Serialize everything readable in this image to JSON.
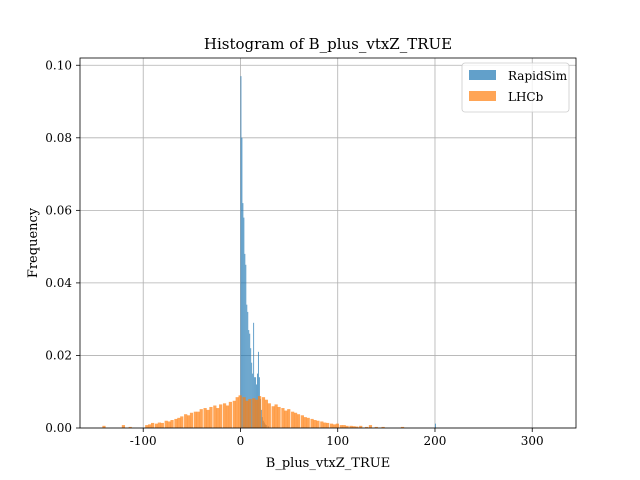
{
  "chart_data": {
    "type": "bar",
    "title": "Histogram of B_plus_vtxZ_TRUE",
    "xlabel": "B_plus_vtxZ_TRUE",
    "ylabel": "Frequency",
    "xlim": [
      -165,
      345
    ],
    "ylim": [
      0,
      0.102
    ],
    "xticks": [
      -100,
      0,
      100,
      200,
      300
    ],
    "xtick_labels": [
      "-100",
      "0",
      "100",
      "200",
      "300"
    ],
    "yticks": [
      0.0,
      0.02,
      0.04,
      0.06,
      0.08,
      0.1
    ],
    "ytick_labels": [
      "0.00",
      "0.02",
      "0.04",
      "0.06",
      "0.08",
      "0.10"
    ],
    "grid": true,
    "legend_position": "top-right",
    "series": [
      {
        "name": "RapidSim",
        "color": "#1f77b4",
        "opacity": 0.7,
        "bin_width": 1.0,
        "bins": [
          {
            "x": 0,
            "y": 0.097
          },
          {
            "x": 1,
            "y": 0.08
          },
          {
            "x": 2,
            "y": 0.062
          },
          {
            "x": 3,
            "y": 0.058
          },
          {
            "x": 4,
            "y": 0.048
          },
          {
            "x": 5,
            "y": 0.045
          },
          {
            "x": 6,
            "y": 0.034
          },
          {
            "x": 7,
            "y": 0.032
          },
          {
            "x": 8,
            "y": 0.027
          },
          {
            "x": 9,
            "y": 0.026
          },
          {
            "x": 10,
            "y": 0.022
          },
          {
            "x": 11,
            "y": 0.018
          },
          {
            "x": 12,
            "y": 0.015
          },
          {
            "x": 13,
            "y": 0.029
          },
          {
            "x": 14,
            "y": 0.014
          },
          {
            "x": 15,
            "y": 0.014
          },
          {
            "x": 16,
            "y": 0.012
          },
          {
            "x": 17,
            "y": 0.015
          },
          {
            "x": 18,
            "y": 0.021
          },
          {
            "x": 19,
            "y": 0.014
          },
          {
            "x": 20,
            "y": 0.008
          },
          {
            "x": 21,
            "y": 0.005
          },
          {
            "x": 22,
            "y": 0.003
          },
          {
            "x": 23,
            "y": 0.002
          },
          {
            "x": 24,
            "y": 0.0015
          },
          {
            "x": 25,
            "y": 0.001
          },
          {
            "x": 26,
            "y": 0.0008
          },
          {
            "x": 28,
            "y": 0.0005
          },
          {
            "x": 200,
            "y": 0.0012
          }
        ]
      },
      {
        "name": "LHCb",
        "color": "#ff7f0e",
        "opacity": 0.7,
        "bin_width": 3.3,
        "bins": [
          {
            "x": -142,
            "y": 0.0006
          },
          {
            "x": -122,
            "y": 0.0008
          },
          {
            "x": -115,
            "y": 0.0003
          },
          {
            "x": -98,
            "y": 0.0008
          },
          {
            "x": -95,
            "y": 0.001
          },
          {
            "x": -92,
            "y": 0.0014
          },
          {
            "x": -88,
            "y": 0.0012
          },
          {
            "x": -85,
            "y": 0.0015
          },
          {
            "x": -82,
            "y": 0.0014
          },
          {
            "x": -78,
            "y": 0.002
          },
          {
            "x": -75,
            "y": 0.0018
          },
          {
            "x": -72,
            "y": 0.0022
          },
          {
            "x": -68,
            "y": 0.0025
          },
          {
            "x": -65,
            "y": 0.0028
          },
          {
            "x": -62,
            "y": 0.0032
          },
          {
            "x": -58,
            "y": 0.0038
          },
          {
            "x": -55,
            "y": 0.0035
          },
          {
            "x": -52,
            "y": 0.0042
          },
          {
            "x": -48,
            "y": 0.0045
          },
          {
            "x": -45,
            "y": 0.0045
          },
          {
            "x": -42,
            "y": 0.0052
          },
          {
            "x": -38,
            "y": 0.0055
          },
          {
            "x": -35,
            "y": 0.005
          },
          {
            "x": -32,
            "y": 0.0058
          },
          {
            "x": -28,
            "y": 0.0062
          },
          {
            "x": -25,
            "y": 0.0055
          },
          {
            "x": -22,
            "y": 0.0065
          },
          {
            "x": -18,
            "y": 0.0068
          },
          {
            "x": -15,
            "y": 0.0062
          },
          {
            "x": -12,
            "y": 0.0072
          },
          {
            "x": -8,
            "y": 0.0075
          },
          {
            "x": -5,
            "y": 0.0085
          },
          {
            "x": -2,
            "y": 0.009
          },
          {
            "x": 2,
            "y": 0.0085
          },
          {
            "x": 5,
            "y": 0.0075
          },
          {
            "x": 8,
            "y": 0.008
          },
          {
            "x": 12,
            "y": 0.0082
          },
          {
            "x": 15,
            "y": 0.0078
          },
          {
            "x": 18,
            "y": 0.0088
          },
          {
            "x": 22,
            "y": 0.0085
          },
          {
            "x": 25,
            "y": 0.0078
          },
          {
            "x": 28,
            "y": 0.0068
          },
          {
            "x": 32,
            "y": 0.006
          },
          {
            "x": 35,
            "y": 0.0065
          },
          {
            "x": 38,
            "y": 0.0058
          },
          {
            "x": 42,
            "y": 0.0055
          },
          {
            "x": 45,
            "y": 0.0048
          },
          {
            "x": 48,
            "y": 0.0052
          },
          {
            "x": 52,
            "y": 0.0045
          },
          {
            "x": 55,
            "y": 0.0042
          },
          {
            "x": 58,
            "y": 0.0038
          },
          {
            "x": 62,
            "y": 0.0035
          },
          {
            "x": 65,
            "y": 0.003
          },
          {
            "x": 68,
            "y": 0.0028
          },
          {
            "x": 72,
            "y": 0.0025
          },
          {
            "x": 75,
            "y": 0.0022
          },
          {
            "x": 78,
            "y": 0.002
          },
          {
            "x": 82,
            "y": 0.0018
          },
          {
            "x": 85,
            "y": 0.0015
          },
          {
            "x": 88,
            "y": 0.0014
          },
          {
            "x": 92,
            "y": 0.0012
          },
          {
            "x": 95,
            "y": 0.001
          },
          {
            "x": 98,
            "y": 0.0012
          },
          {
            "x": 102,
            "y": 0.0008
          },
          {
            "x": 105,
            "y": 0.0008
          },
          {
            "x": 108,
            "y": 0.0006
          },
          {
            "x": 112,
            "y": 0.0006
          },
          {
            "x": 115,
            "y": 0.0005
          },
          {
            "x": 118,
            "y": 0.0004
          },
          {
            "x": 122,
            "y": 0.0006
          },
          {
            "x": 128,
            "y": 0.0003
          },
          {
            "x": 132,
            "y": 0.0008
          },
          {
            "x": 138,
            "y": 0.0003
          },
          {
            "x": 145,
            "y": 0.0003
          },
          {
            "x": 165,
            "y": 0.0003
          }
        ]
      }
    ]
  }
}
